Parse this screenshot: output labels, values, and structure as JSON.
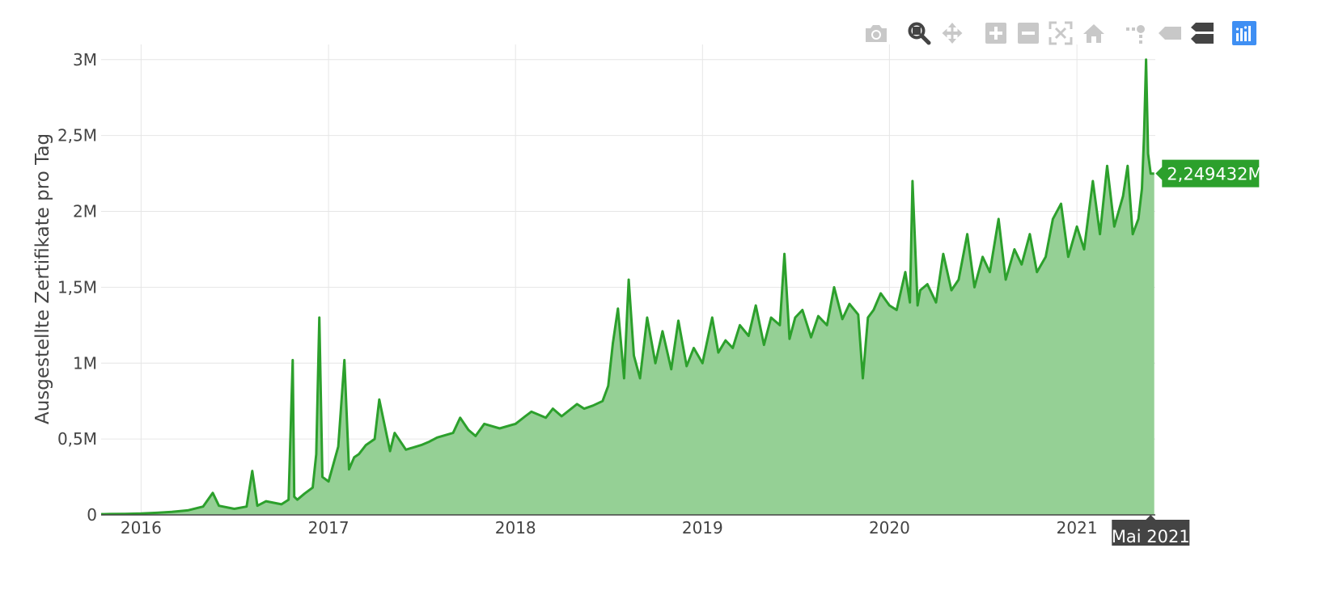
{
  "modebar": {
    "buttons": [
      {
        "name": "camera-icon",
        "color": "#c8c8c8"
      },
      {
        "name": "zoom-icon",
        "color": "#444444"
      },
      {
        "name": "pan-icon",
        "color": "#c8c8c8"
      },
      {
        "name": "zoom-in-icon",
        "color": "#c8c8c8"
      },
      {
        "name": "zoom-out-icon",
        "color": "#c8c8c8"
      },
      {
        "name": "autoscale-icon",
        "color": "#c8c8c8"
      },
      {
        "name": "reset-axes-icon",
        "color": "#c8c8c8"
      },
      {
        "name": "spike-lines-icon",
        "color": "#c8c8c8"
      },
      {
        "name": "hover-closest-icon",
        "color": "#c8c8c8"
      },
      {
        "name": "hover-compare-icon",
        "color": "#444444"
      },
      {
        "name": "plotly-logo-icon",
        "color": "#3f8ff3"
      }
    ]
  },
  "chart_data": {
    "type": "area",
    "title": "",
    "xlabel": "",
    "ylabel": "Ausgestellte Zertifikate pro Tag",
    "x_range": [
      "2015-10-15",
      "2021-06-03"
    ],
    "y_range": [
      0,
      3100000
    ],
    "x_tick_labels": [
      "2016",
      "2017",
      "2018",
      "2019",
      "2020",
      "2021"
    ],
    "x_tick_dates": [
      "2016-01-01",
      "2017-01-01",
      "2018-01-01",
      "2019-01-01",
      "2020-01-01",
      "2021-01-01"
    ],
    "y_tick_labels": [
      "0",
      "0,5M",
      "1M",
      "1,5M",
      "2M",
      "2,5M",
      "3M"
    ],
    "y_tick_values": [
      0,
      500000,
      1000000,
      1500000,
      2000000,
      2500000,
      3000000
    ],
    "grid": true,
    "line_color": "#2ca02c",
    "fill_color": "#95d095",
    "series": [
      {
        "x": [
          "2015-10-15",
          "2015-11-01",
          "2015-12-01",
          "2016-01-01",
          "2016-02-01",
          "2016-03-01",
          "2016-04-01",
          "2016-05-01",
          "2016-05-20",
          "2016-06-01",
          "2016-07-01",
          "2016-07-25",
          "2016-08-05",
          "2016-08-15",
          "2016-09-01",
          "2016-10-01",
          "2016-10-15",
          "2016-10-23",
          "2016-10-26",
          "2016-11-01",
          "2016-11-15",
          "2016-12-01",
          "2016-12-08",
          "2016-12-14",
          "2016-12-20",
          "2017-01-01",
          "2017-01-20",
          "2017-02-01",
          "2017-02-10",
          "2017-02-20",
          "2017-03-01",
          "2017-03-15",
          "2017-04-01",
          "2017-04-10",
          "2017-05-01",
          "2017-05-10",
          "2017-06-01",
          "2017-07-01",
          "2017-07-15",
          "2017-08-01",
          "2017-09-01",
          "2017-09-15",
          "2017-10-01",
          "2017-10-15",
          "2017-11-01",
          "2017-12-01",
          "2018-01-01",
          "2018-01-20",
          "2018-02-01",
          "2018-03-01",
          "2018-03-15",
          "2018-04-01",
          "2018-05-01",
          "2018-05-15",
          "2018-06-01",
          "2018-06-20",
          "2018-07-01",
          "2018-07-10",
          "2018-07-20",
          "2018-08-01",
          "2018-08-10",
          "2018-08-20",
          "2018-09-01",
          "2018-09-15",
          "2018-10-01",
          "2018-10-15",
          "2018-11-01",
          "2018-11-15",
          "2018-12-01",
          "2018-12-15",
          "2019-01-01",
          "2019-01-20",
          "2019-02-01",
          "2019-02-15",
          "2019-03-01",
          "2019-03-15",
          "2019-04-01",
          "2019-04-15",
          "2019-05-01",
          "2019-05-15",
          "2019-06-01",
          "2019-06-10",
          "2019-06-20",
          "2019-07-01",
          "2019-07-15",
          "2019-08-01",
          "2019-08-15",
          "2019-09-01",
          "2019-09-15",
          "2019-10-01",
          "2019-10-15",
          "2019-11-01",
          "2019-11-10",
          "2019-11-20",
          "2019-12-01",
          "2019-12-15",
          "2020-01-01",
          "2020-01-15",
          "2020-02-01",
          "2020-02-10",
          "2020-02-15",
          "2020-02-25",
          "2020-03-01",
          "2020-03-15",
          "2020-04-01",
          "2020-04-15",
          "2020-05-01",
          "2020-05-15",
          "2020-06-01",
          "2020-06-15",
          "2020-07-01",
          "2020-07-15",
          "2020-08-01",
          "2020-08-15",
          "2020-09-01",
          "2020-09-15",
          "2020-10-01",
          "2020-10-15",
          "2020-11-01",
          "2020-11-15",
          "2020-12-01",
          "2020-12-15",
          "2021-01-01",
          "2021-01-15",
          "2021-02-01",
          "2021-02-15",
          "2021-03-01",
          "2021-03-15",
          "2021-04-01",
          "2021-04-10",
          "2021-04-20",
          "2021-05-01",
          "2021-05-08",
          "2021-05-12",
          "2021-05-16",
          "2021-05-20",
          "2021-05-25",
          "2021-06-01"
        ],
        "y": [
          5000,
          6000,
          7000,
          9000,
          14000,
          20000,
          30000,
          55000,
          145000,
          60000,
          40000,
          55000,
          290000,
          60000,
          90000,
          70000,
          100000,
          1020000,
          120000,
          100000,
          140000,
          180000,
          400000,
          1300000,
          250000,
          220000,
          450000,
          1020000,
          300000,
          380000,
          400000,
          460000,
          500000,
          760000,
          420000,
          540000,
          430000,
          460000,
          480000,
          510000,
          540000,
          640000,
          560000,
          520000,
          600000,
          570000,
          600000,
          650000,
          680000,
          640000,
          700000,
          650000,
          730000,
          700000,
          720000,
          750000,
          850000,
          1130000,
          1360000,
          900000,
          1550000,
          1050000,
          900000,
          1300000,
          1000000,
          1210000,
          960000,
          1280000,
          980000,
          1100000,
          1000000,
          1300000,
          1070000,
          1150000,
          1100000,
          1250000,
          1180000,
          1380000,
          1120000,
          1300000,
          1250000,
          1720000,
          1160000,
          1300000,
          1350000,
          1170000,
          1310000,
          1250000,
          1500000,
          1290000,
          1390000,
          1320000,
          900000,
          1300000,
          1350000,
          1460000,
          1380000,
          1350000,
          1600000,
          1400000,
          2200000,
          1380000,
          1480000,
          1520000,
          1400000,
          1720000,
          1480000,
          1550000,
          1850000,
          1500000,
          1700000,
          1600000,
          1950000,
          1550000,
          1750000,
          1650000,
          1850000,
          1600000,
          1700000,
          1950000,
          2050000,
          1700000,
          1900000,
          1750000,
          2200000,
          1850000,
          2300000,
          1900000,
          2100000,
          2300000,
          1850000,
          1950000,
          2150000,
          2500000,
          3000000,
          2380000,
          2249432,
          2249432
        ]
      }
    ],
    "hover": {
      "x_label": "Mai 2021",
      "y_label": "2,249432M",
      "x": "2021-05-25",
      "y": 2249432
    }
  }
}
